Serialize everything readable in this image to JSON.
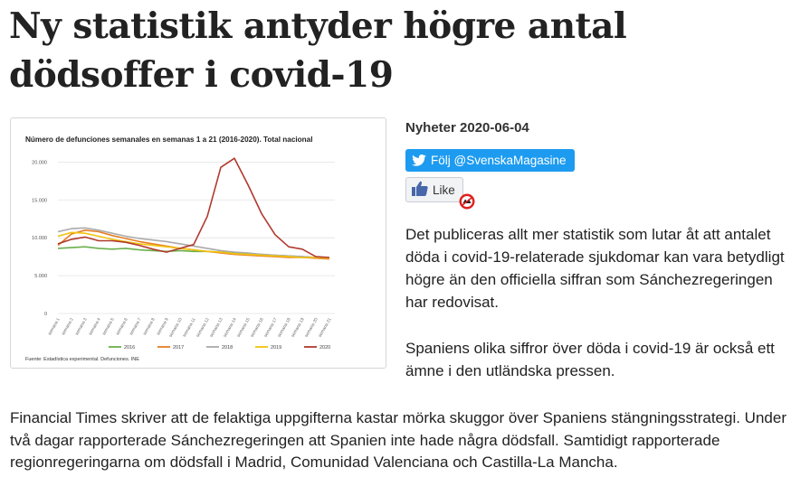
{
  "article": {
    "headline": "Ny statistik antyder högre antal dödsoffer i covid-19",
    "meta": "Nyheter 2020-06-04",
    "twitter_button": "Följ @SvenskaMagasine",
    "like_button": "Like",
    "lead": "Det publiceras allt mer statistik som lutar åt att antalet döda i covid-19-relaterade sjukdomar kan vara betydligt högre än den officiella siffran som Sánchezregeringen har redovisat.",
    "paragraph_2": "Spaniens olika siffror över döda i covid-19 är också ett ämne i den utländska pressen.",
    "paragraph_3": "Financial Times skriver att de felaktiga uppgifterna kastar mörka skuggor över Spaniens stängningsstrategi. Under två dagar rapporterade Sánchezregeringen att Spanien inte hade några dödsfall. Samtidigt rapporterade regionregeringarna om dödsfall i Madrid, Comunidad Valenciana och Castilla-La Mancha."
  },
  "icons": {
    "twitter": "twitter-bird-icon",
    "like": "thumbs-up-icon",
    "blocker": "ad-block-icon"
  },
  "chart_data": {
    "type": "line",
    "title": "Número de defunciones semanales en semanas 1 a 21 (2016-2020). Total nacional",
    "source": "Fuente: Estadística experimental. Defunciones. INE",
    "x": [
      "semana 1",
      "semana 2",
      "semana 3",
      "semana 4",
      "semana 5",
      "semana 6",
      "semana 7",
      "semana 8",
      "semana 9",
      "semana 10",
      "semana 11",
      "semana 12",
      "semana 13",
      "semana 14",
      "semana 15",
      "semana 16",
      "semana 17",
      "semana 18",
      "semana 19",
      "semana 20",
      "semana 21"
    ],
    "yticks": [
      0,
      5000,
      10000,
      15000,
      20000
    ],
    "ytick_labels": [
      "0",
      "5.000",
      "10.000",
      "15.000",
      "20.000"
    ],
    "ylim": [
      0,
      21000
    ],
    "grid": true,
    "legend": "bottom",
    "series": [
      {
        "name": "2016",
        "color": "#6ab04c",
        "values": [
          8600,
          8700,
          8800,
          8600,
          8500,
          8600,
          8400,
          8300,
          8200,
          8300,
          8200,
          8200,
          8100,
          8000,
          7900,
          7800,
          7700,
          7600,
          7500,
          7400,
          7300
        ]
      },
      {
        "name": "2017",
        "color": "#e67e22",
        "values": [
          9000,
          10500,
          11000,
          10800,
          10300,
          9900,
          9500,
          9200,
          8900,
          8600,
          8400,
          8200,
          8000,
          7800,
          7700,
          7600,
          7500,
          7400,
          7400,
          7300,
          7200
        ]
      },
      {
        "name": "2018",
        "color": "#aaaaaa",
        "values": [
          10800,
          11200,
          11300,
          11000,
          10600,
          10200,
          9900,
          9700,
          9500,
          9200,
          8900,
          8600,
          8300,
          8100,
          8000,
          7800,
          7700,
          7600,
          7500,
          7400,
          7300
        ]
      },
      {
        "name": "2019",
        "color": "#f1c40f",
        "values": [
          10200,
          10700,
          10600,
          10200,
          9800,
          9500,
          9200,
          9000,
          8800,
          8600,
          8400,
          8200,
          8100,
          7900,
          7800,
          7700,
          7600,
          7500,
          7400,
          7400,
          7300
        ]
      },
      {
        "name": "2020",
        "color": "#b03a2e",
        "values": [
          9200,
          9800,
          10100,
          9600,
          9600,
          9400,
          9000,
          8500,
          8100,
          8600,
          9100,
          12800,
          19300,
          20500,
          17000,
          13200,
          10400,
          8800,
          8500,
          7500,
          7400
        ]
      }
    ]
  }
}
